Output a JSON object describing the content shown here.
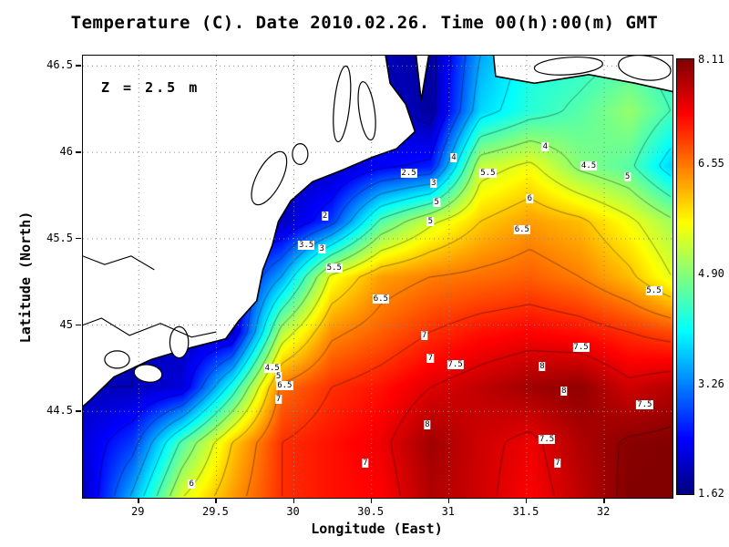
{
  "chart_data": {
    "type": "heatmap",
    "title": "Temperature (C). Date 2010.02.26. Time 00(h):00(m) GMT",
    "annotation": "Z = 2.5 m",
    "xlabel": "Longitude (East)",
    "ylabel": "Latitude (North)",
    "xlim": [
      28.64,
      32.44
    ],
    "ylim": [
      44.0,
      46.56
    ],
    "grid_on": true,
    "xticks": {
      "values": [
        29,
        29.5,
        30,
        30.5,
        31,
        31.5,
        32
      ],
      "labels": [
        "29",
        "29.5",
        "30",
        "30.5",
        "31",
        "31.5",
        "32"
      ]
    },
    "yticks": {
      "values": [
        44.5,
        45,
        45.5,
        46,
        46.5
      ],
      "labels": [
        "44.5",
        "45",
        "45.5",
        "46",
        "46.5"
      ]
    },
    "colorbar": {
      "vmin": 1.62,
      "vmax": 8.11,
      "colormap": "jet",
      "tick_values": [
        8.11,
        6.55,
        4.9,
        3.26,
        1.62
      ],
      "tick_labels": [
        "8.11",
        "6.55",
        "4.90",
        "3.26",
        "1.62"
      ]
    },
    "contour_levels": [
      2,
      2.5,
      3,
      3.5,
      4,
      4.5,
      5,
      5.5,
      6,
      6.5,
      7,
      7.5,
      8
    ],
    "grid": {
      "lon": [
        28.64,
        28.96,
        29.28,
        29.6,
        29.92,
        30.24,
        30.56,
        30.88,
        31.2,
        31.52,
        31.84,
        32.16,
        32.48
      ],
      "lat": [
        46.56,
        46.24,
        45.92,
        45.6,
        45.28,
        44.96,
        44.64,
        44.32,
        44.0
      ],
      "temperature_c": [
        [
          2.0,
          2.0,
          2.0,
          2.0,
          2.0,
          2.0,
          2.0,
          1.8,
          3.5,
          4.2,
          4.3,
          4.5,
          4.2
        ],
        [
          2.0,
          2.0,
          2.0,
          2.0,
          2.0,
          2.0,
          2.2,
          1.8,
          3.8,
          4.3,
          4.6,
          5.0,
          4.4
        ],
        [
          2.0,
          2.0,
          2.0,
          2.0,
          2.0,
          2.0,
          2.4,
          2.6,
          5.3,
          5.6,
          4.9,
          4.6,
          3.6
        ],
        [
          2.0,
          2.0,
          2.0,
          2.0,
          2.0,
          2.8,
          4.6,
          5.4,
          6.0,
          6.3,
          6.1,
          5.6,
          5.0
        ],
        [
          2.0,
          2.0,
          2.0,
          2.2,
          3.5,
          5.6,
          6.3,
          6.5,
          6.6,
          6.7,
          6.5,
          6.1,
          5.4
        ],
        [
          2.0,
          2.0,
          2.0,
          2.0,
          5.2,
          6.4,
          6.7,
          7.0,
          7.2,
          7.3,
          7.2,
          7.0,
          6.8
        ],
        [
          2.0,
          2.0,
          2.2,
          4.2,
          6.6,
          7.0,
          7.2,
          7.5,
          7.7,
          7.9,
          8.0,
          7.6,
          7.8
        ],
        [
          2.2,
          2.8,
          4.6,
          6.0,
          7.0,
          7.2,
          7.4,
          7.9,
          7.6,
          7.4,
          7.8,
          8.05,
          8.1
        ],
        [
          2.0,
          3.6,
          5.5,
          6.3,
          7.0,
          7.2,
          7.3,
          7.8,
          7.6,
          7.3,
          7.7,
          8.1,
          8.1
        ]
      ]
    },
    "contour_labels": [
      {
        "value": "4",
        "lon": 31.03,
        "lat": 45.97
      },
      {
        "value": "4",
        "lon": 31.62,
        "lat": 46.03
      },
      {
        "value": "4.5",
        "lon": 31.9,
        "lat": 45.92
      },
      {
        "value": "5",
        "lon": 32.15,
        "lat": 45.86
      },
      {
        "value": "2.5",
        "lon": 30.74,
        "lat": 45.88
      },
      {
        "value": "3",
        "lon": 30.9,
        "lat": 45.82
      },
      {
        "value": "5.5",
        "lon": 31.25,
        "lat": 45.88
      },
      {
        "value": "5",
        "lon": 30.92,
        "lat": 45.71
      },
      {
        "value": "5",
        "lon": 30.88,
        "lat": 45.6
      },
      {
        "value": "6",
        "lon": 31.52,
        "lat": 45.73
      },
      {
        "value": "6.5",
        "lon": 31.47,
        "lat": 45.55
      },
      {
        "value": "2",
        "lon": 30.2,
        "lat": 45.63
      },
      {
        "value": "3.5",
        "lon": 30.08,
        "lat": 45.46
      },
      {
        "value": "3",
        "lon": 30.18,
        "lat": 45.44
      },
      {
        "value": "5.5",
        "lon": 30.26,
        "lat": 45.33
      },
      {
        "value": "6.5",
        "lon": 30.56,
        "lat": 45.15
      },
      {
        "value": "5.5",
        "lon": 32.32,
        "lat": 45.2
      },
      {
        "value": "7",
        "lon": 30.84,
        "lat": 44.94
      },
      {
        "value": "7",
        "lon": 30.88,
        "lat": 44.81
      },
      {
        "value": "7.5",
        "lon": 31.04,
        "lat": 44.77
      },
      {
        "value": "7.5",
        "lon": 31.85,
        "lat": 44.87
      },
      {
        "value": "8",
        "lon": 31.6,
        "lat": 44.76
      },
      {
        "value": "8",
        "lon": 31.74,
        "lat": 44.62
      },
      {
        "value": "7.5",
        "lon": 32.26,
        "lat": 44.54
      },
      {
        "value": "8",
        "lon": 30.86,
        "lat": 44.42
      },
      {
        "value": "7.5",
        "lon": 31.63,
        "lat": 44.34
      },
      {
        "value": "7",
        "lon": 31.7,
        "lat": 44.2
      },
      {
        "value": "7",
        "lon": 30.46,
        "lat": 44.2
      },
      {
        "value": "6",
        "lon": 29.34,
        "lat": 44.08
      },
      {
        "value": "4.5",
        "lon": 29.86,
        "lat": 44.75
      },
      {
        "value": "5",
        "lon": 29.9,
        "lat": 44.7
      },
      {
        "value": "6.5",
        "lon": 29.94,
        "lat": 44.65
      },
      {
        "value": "7",
        "lon": 29.9,
        "lat": 44.57
      }
    ],
    "coastline": {
      "land_polygons": [
        [
          [
            28.55,
            46.62
          ],
          [
            30.58,
            46.62
          ],
          [
            30.62,
            46.4
          ],
          [
            30.72,
            46.28
          ],
          [
            30.78,
            46.12
          ],
          [
            30.66,
            46.02
          ],
          [
            30.5,
            45.97
          ],
          [
            30.32,
            45.9
          ],
          [
            30.12,
            45.83
          ],
          [
            29.98,
            45.72
          ],
          [
            29.9,
            45.6
          ],
          [
            29.86,
            45.46
          ],
          [
            29.8,
            45.32
          ],
          [
            29.76,
            45.14
          ],
          [
            29.64,
            45.02
          ],
          [
            29.56,
            44.92
          ],
          [
            29.34,
            44.87
          ],
          [
            29.08,
            44.8
          ],
          [
            28.84,
            44.7
          ],
          [
            28.68,
            44.56
          ],
          [
            28.55,
            44.46
          ]
        ],
        [
          [
            30.78,
            46.62
          ],
          [
            30.82,
            46.3
          ],
          [
            30.88,
            46.62
          ]
        ],
        [
          [
            31.28,
            46.62
          ],
          [
            31.3,
            46.44
          ],
          [
            31.55,
            46.4
          ],
          [
            31.9,
            46.45
          ],
          [
            32.2,
            46.4
          ],
          [
            32.5,
            46.34
          ],
          [
            32.5,
            46.62
          ]
        ]
      ],
      "lakes": [
        {
          "cx": 30.31,
          "cy": 46.28,
          "rx": 0.05,
          "ry": 0.22,
          "rot": 6
        },
        {
          "cx": 30.47,
          "cy": 46.24,
          "rx": 0.05,
          "ry": 0.17,
          "rot": -8
        },
        {
          "cx": 29.84,
          "cy": 45.85,
          "rx": 0.08,
          "ry": 0.17,
          "rot": 28
        },
        {
          "cx": 30.04,
          "cy": 45.99,
          "rx": 0.05,
          "ry": 0.06,
          "rot": 0
        },
        {
          "cx": 28.86,
          "cy": 44.8,
          "rx": 0.08,
          "ry": 0.05,
          "rot": 0
        },
        {
          "cx": 29.06,
          "cy": 44.72,
          "rx": 0.09,
          "ry": 0.05,
          "rot": 8
        },
        {
          "cx": 29.26,
          "cy": 44.9,
          "rx": 0.06,
          "ry": 0.09,
          "rot": 0
        },
        {
          "cx": 31.77,
          "cy": 46.5,
          "rx": 0.22,
          "ry": 0.05,
          "rot": -4
        },
        {
          "cx": 32.26,
          "cy": 46.49,
          "rx": 0.17,
          "ry": 0.07,
          "rot": 8
        }
      ],
      "rivers": [
        [
          [
            28.58,
            45.42
          ],
          [
            28.78,
            45.35
          ],
          [
            28.95,
            45.4
          ],
          [
            29.1,
            45.32
          ]
        ],
        [
          [
            28.58,
            44.98
          ],
          [
            28.76,
            45.04
          ],
          [
            28.94,
            44.94
          ],
          [
            29.14,
            45.01
          ],
          [
            29.34,
            44.93
          ],
          [
            29.5,
            44.96
          ]
        ]
      ]
    }
  }
}
